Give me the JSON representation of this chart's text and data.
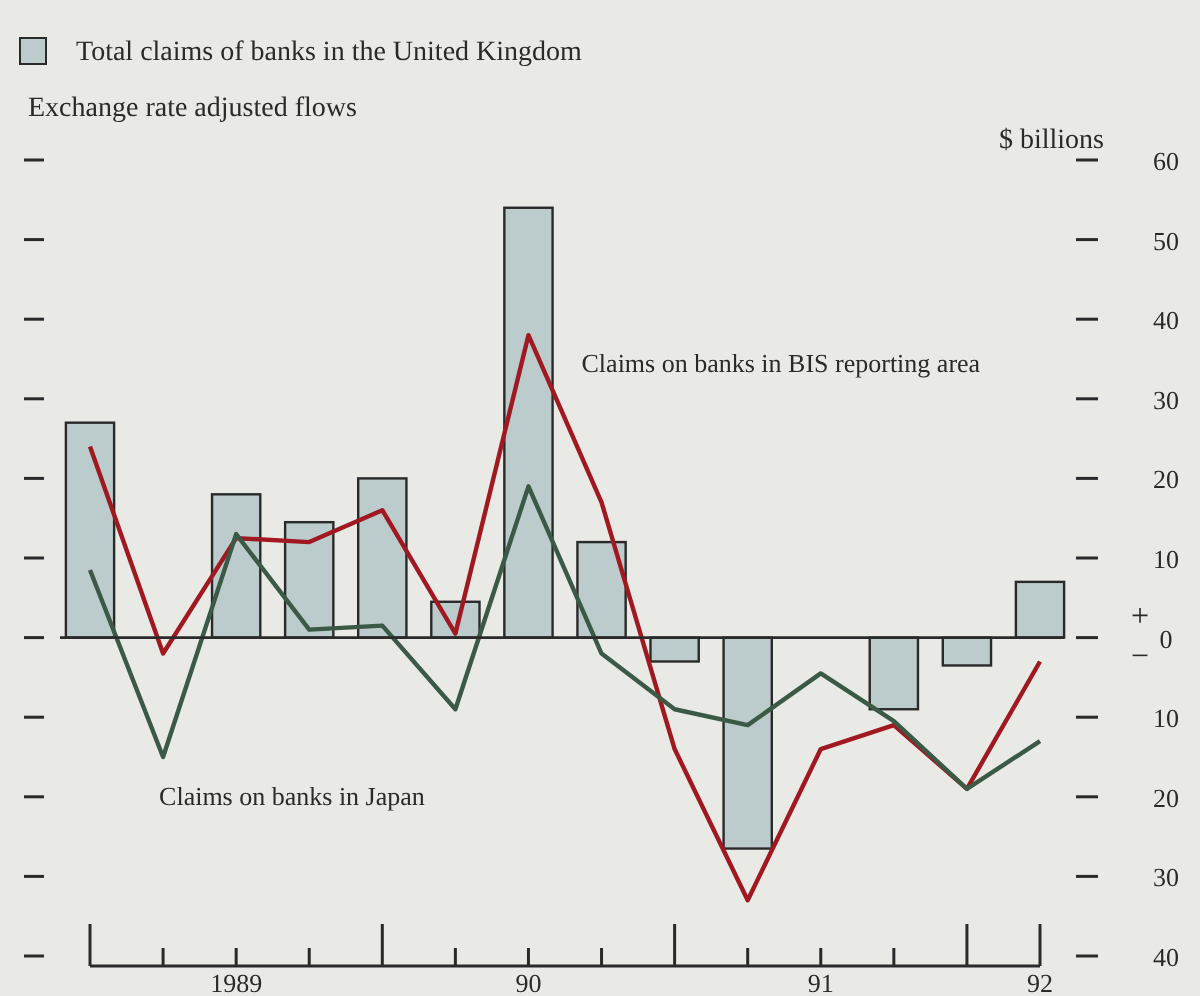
{
  "chart_data": {
    "type": "bar",
    "subtitle": "Exchange rate adjusted flows",
    "ylabel": "$ billions",
    "categories": [
      null,
      null,
      "1989",
      null,
      null,
      null,
      "90",
      null,
      null,
      null,
      "91",
      null,
      null,
      "92"
    ],
    "ylim": [
      -40,
      60
    ],
    "yticks": [
      {
        "value": -40,
        "label": "40"
      },
      {
        "value": -30,
        "label": "30"
      },
      {
        "value": -20,
        "label": "20"
      },
      {
        "value": -10,
        "label": "10"
      },
      0,
      10,
      20,
      30,
      40,
      50,
      60
    ],
    "series": [
      {
        "name": "Total claims of banks in the United Kingdom",
        "color": "#bccbcb",
        "values": [
          27,
          null,
          18,
          14.5,
          20,
          4.5,
          54,
          12,
          -3,
          -26.5,
          null,
          -9,
          -3.5,
          7
        ]
      },
      {
        "name": "Claims on banks in BIS reporting area",
        "type": "line",
        "color": "#a01820",
        "values": [
          24,
          -2,
          12.5,
          12,
          16,
          0.5,
          38,
          17,
          -14,
          -33,
          -14,
          -11,
          -19,
          -3
        ]
      },
      {
        "name": "Claims on banks in Japan",
        "type": "line",
        "color": "#3b5a45",
        "values": [
          8.5,
          -15,
          13,
          1,
          1.5,
          -9,
          19,
          -2,
          -9,
          -11,
          -4.5,
          -10.5,
          -19,
          -13
        ]
      }
    ],
    "annotations": [
      "+",
      "−"
    ],
    "legend": "top left"
  }
}
